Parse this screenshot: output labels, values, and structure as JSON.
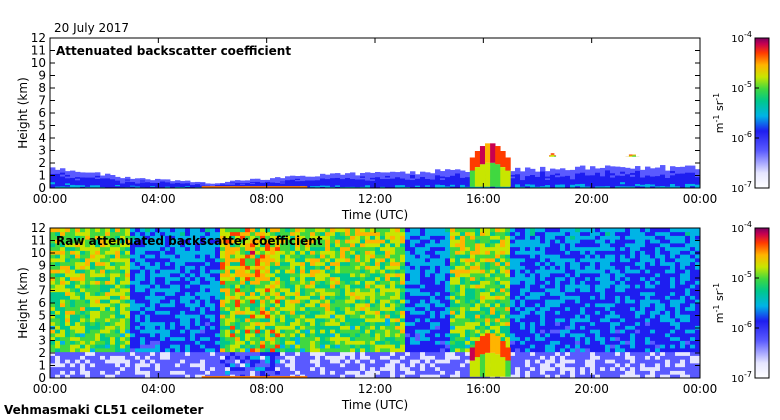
{
  "date_label": "20 July 2017",
  "footer_label": "Vehmasmaki CL51 ceilometer",
  "chart_data": [
    {
      "type": "heatmap",
      "title": "Attenuated backscatter coefficient",
      "xlabel": "Time (UTC)",
      "ylabel": "Height (km)",
      "xticks": [
        "00:00",
        "04:00",
        "08:00",
        "12:00",
        "16:00",
        "20:00",
        "00:00"
      ],
      "xlim_hours": [
        0,
        24
      ],
      "ylim_km": [
        0,
        12
      ],
      "yticks": [
        0,
        1,
        2,
        3,
        4,
        5,
        6,
        7,
        8,
        9,
        10,
        11,
        12
      ],
      "colorbar": {
        "unit_base": "m",
        "unit_exp": "-1",
        "unit_base2": "sr",
        "unit_exp2": "-1",
        "labels": [
          {
            "base": "10",
            "exp": "-4",
            "value": 0.0001
          },
          {
            "base": "10",
            "exp": "-5",
            "value": 1e-05
          },
          {
            "base": "10",
            "exp": "-6",
            "value": 1e-06
          },
          {
            "base": "10",
            "exp": "-7",
            "value": 1e-07
          }
        ],
        "scale": "log"
      },
      "features": {
        "boundary_layer_top_km": [
          [
            0,
            1.6
          ],
          [
            3,
            0.8
          ],
          [
            6,
            0.4
          ],
          [
            9,
            0.9
          ],
          [
            12,
            1.2
          ],
          [
            16,
            1.4
          ],
          [
            20,
            1.6
          ],
          [
            24,
            1.6
          ]
        ],
        "cloud_layers": [
          {
            "start_h": 15.5,
            "end_h": 17.0,
            "base_km": 0.1,
            "top_km": 3.6
          },
          {
            "start_h": 18.3,
            "end_h": 18.8,
            "base_km": 2.5,
            "top_km": 2.8
          },
          {
            "start_h": 21.0,
            "end_h": 22.0,
            "base_km": 2.5,
            "top_km": 2.7
          }
        ]
      }
    },
    {
      "type": "heatmap",
      "title": "Raw attenuated backscatter coefficient",
      "xlabel": "Time (UTC)",
      "ylabel": "Height (km)",
      "xticks": [
        "00:00",
        "04:00",
        "08:00",
        "12:00",
        "16:00",
        "20:00",
        "00:00"
      ],
      "xlim_hours": [
        0,
        24
      ],
      "ylim_km": [
        0,
        12
      ],
      "yticks": [
        0,
        1,
        2,
        3,
        4,
        5,
        6,
        7,
        8,
        9,
        10,
        11,
        12
      ],
      "colorbar": {
        "unit_base": "m",
        "unit_exp": "-1",
        "unit_base2": "sr",
        "unit_exp2": "-1",
        "labels": [
          {
            "base": "10",
            "exp": "-4",
            "value": 0.0001
          },
          {
            "base": "10",
            "exp": "-5",
            "value": 1e-05
          },
          {
            "base": "10",
            "exp": "-6",
            "value": 1e-06
          },
          {
            "base": "10",
            "exp": "-7",
            "value": 1e-07
          }
        ],
        "scale": "log"
      },
      "features": {
        "noisy_periods_h": [
          [
            0,
            2.9
          ],
          [
            6.3,
            13.2
          ],
          [
            14.8,
            17.0
          ]
        ],
        "cloud_layers": [
          {
            "start_h": 15.5,
            "end_h": 17.0,
            "base_km": 0.1,
            "top_km": 3.6
          }
        ]
      }
    }
  ]
}
